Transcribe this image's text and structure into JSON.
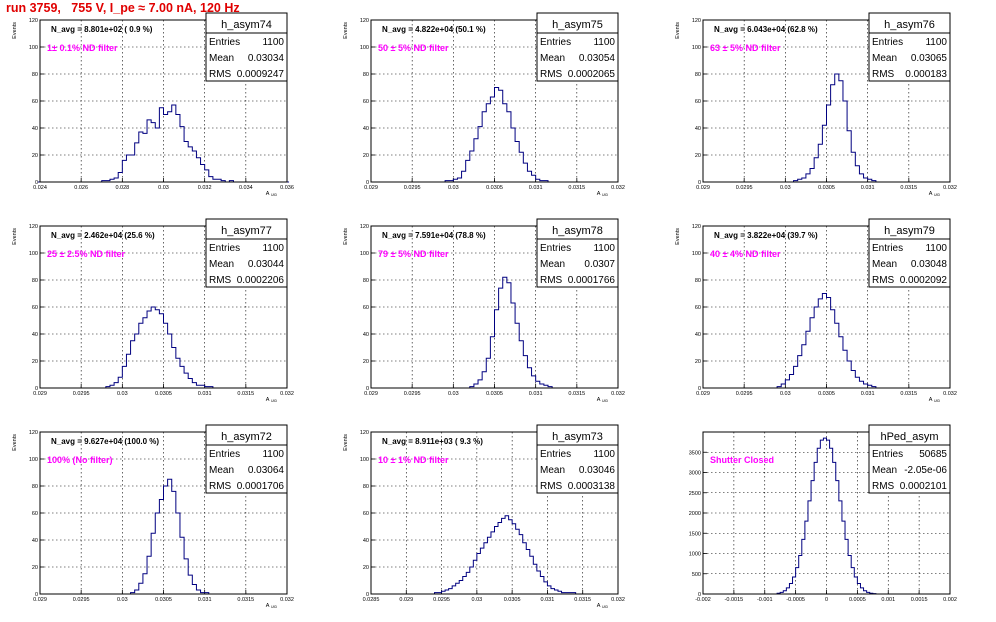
{
  "page_title": "run 3759,   755 V, I_pe ≈ 7.00 nA, 120 Hz",
  "colors": {
    "title": "#e00000",
    "filter_note": "#ff00ff",
    "histogram": "#000080",
    "grid": "#000000"
  },
  "chart_data": [
    {
      "type": "histogram",
      "name": "h_asym74",
      "stats": {
        "entries_label": "Entries",
        "entries": "1100",
        "mean_label": "Mean",
        "mean": "0.03034",
        "rms_label": "RMS",
        "rms": "0.0009247"
      },
      "note": "N_avg = 8.801e+02 ( 0.9 %)",
      "filter": "1± 0.1% ND filter",
      "xlabel": "A_UID",
      "ylabel": "Events",
      "xlim": [
        0.024,
        0.036
      ],
      "ylim": [
        0,
        120
      ],
      "xticks": [
        "0.024",
        "0.026",
        "0.028",
        "0.03",
        "0.032",
        "0.034",
        "0.036"
      ],
      "yticks": [
        "0",
        "20",
        "40",
        "60",
        "80",
        "100",
        "120"
      ],
      "bins": [
        0.0239,
        0.024,
        0.0245,
        0.025,
        0.0255,
        0.026,
        0.0265,
        0.027,
        0.0274,
        0.0276,
        0.0278,
        0.028,
        0.0282,
        0.0284,
        0.0286,
        0.0288,
        0.029,
        0.0292,
        0.0294,
        0.0296,
        0.0298,
        0.03,
        0.0302,
        0.0304,
        0.0306,
        0.0308,
        0.031,
        0.0312,
        0.0314,
        0.0316,
        0.0318,
        0.032,
        0.0322,
        0.0324,
        0.0326,
        0.0328,
        0.033,
        0.0332,
        0.0334,
        0.034,
        0.035,
        0.0361
      ],
      "counts": [
        0,
        0,
        0,
        0,
        0,
        0,
        0,
        1,
        2,
        3,
        7,
        16,
        20,
        20,
        29,
        37,
        36,
        46,
        44,
        40,
        55,
        50,
        52,
        57,
        50,
        41,
        30,
        26,
        23,
        18,
        13,
        9,
        4,
        2,
        2,
        1,
        0,
        1,
        0,
        0,
        0
      ]
    },
    {
      "type": "histogram",
      "name": "h_asym75",
      "stats": {
        "entries_label": "Entries",
        "entries": "1100",
        "mean_label": "Mean",
        "mean": "0.03054",
        "rms_label": "RMS",
        "rms": "0.0002065"
      },
      "note": "N_avg = 4.822e+04 (50.1 %)",
      "filter": "50 ± 5% ND filter",
      "xlabel": "A_UID",
      "ylabel": "Events",
      "xlim": [
        0.029,
        0.032
      ],
      "ylim": [
        0,
        120
      ],
      "xticks": [
        "0.029",
        "0.0295",
        "0.03",
        "0.0305",
        "0.031",
        "0.0315",
        "0.032"
      ],
      "yticks": [
        "0",
        "20",
        "40",
        "60",
        "80",
        "100",
        "120"
      ],
      "bins": [
        0.029,
        0.0299,
        0.03,
        0.03005,
        0.0301,
        0.03015,
        0.0302,
        0.03025,
        0.0303,
        0.03035,
        0.0304,
        0.03045,
        0.0305,
        0.03055,
        0.0306,
        0.03065,
        0.0307,
        0.03075,
        0.0308,
        0.03085,
        0.0309,
        0.03095,
        0.031,
        0.03105,
        0.0311,
        0.03115,
        0.0312,
        0.032
      ],
      "counts": [
        0,
        1,
        2,
        3,
        8,
        16,
        23,
        32,
        41,
        52,
        58,
        63,
        70,
        68,
        58,
        52,
        40,
        30,
        22,
        14,
        8,
        5,
        2,
        1,
        1,
        0,
        0
      ]
    },
    {
      "type": "histogram",
      "name": "h_asym76",
      "stats": {
        "entries_label": "Entries",
        "entries": "1100",
        "mean_label": "Mean",
        "mean": "0.03065",
        "rms_label": "RMS",
        "rms": "0.000183"
      },
      "note": "N_avg = 6.043e+04 (62.8 %)",
      "filter": "63 ± 5% ND filter",
      "xlabel": "A_UID",
      "ylabel": "Events",
      "xlim": [
        0.029,
        0.032
      ],
      "ylim": [
        0,
        120
      ],
      "xticks": [
        "0.029",
        "0.0295",
        "0.03",
        "0.0305",
        "0.031",
        "0.0315",
        "0.032"
      ],
      "yticks": [
        "0",
        "20",
        "40",
        "60",
        "80",
        "100",
        "120"
      ],
      "bins": [
        0.029,
        0.0301,
        0.03015,
        0.0302,
        0.03025,
        0.0303,
        0.03035,
        0.0304,
        0.03045,
        0.0305,
        0.03055,
        0.0306,
        0.03065,
        0.0307,
        0.03075,
        0.0308,
        0.03085,
        0.0309,
        0.03095,
        0.031,
        0.03105,
        0.0311,
        0.032
      ],
      "counts": [
        0,
        1,
        2,
        3,
        6,
        10,
        18,
        28,
        42,
        57,
        72,
        80,
        75,
        60,
        38,
        22,
        12,
        6,
        3,
        2,
        1,
        0
      ]
    },
    {
      "type": "histogram",
      "name": "h_asym77",
      "stats": {
        "entries_label": "Entries",
        "entries": "1100",
        "mean_label": "Mean",
        "mean": "0.03044",
        "rms_label": "RMS",
        "rms": "0.0002206"
      },
      "note": "N_avg = 2.462e+04 (25.6 %)",
      "filter": "25 ± 2.5% ND filter",
      "xlabel": "A_UID",
      "ylabel": "Events",
      "xlim": [
        0.029,
        0.032
      ],
      "ylim": [
        0,
        120
      ],
      "xticks": [
        "0.029",
        "0.0295",
        "0.03",
        "0.0305",
        "0.031",
        "0.0315",
        "0.032"
      ],
      "yticks": [
        "0",
        "20",
        "40",
        "60",
        "80",
        "100",
        "120"
      ],
      "bins": [
        0.029,
        0.0298,
        0.02985,
        0.0299,
        0.02995,
        0.03,
        0.03005,
        0.0301,
        0.03015,
        0.0302,
        0.03025,
        0.0303,
        0.03035,
        0.0304,
        0.03045,
        0.0305,
        0.03055,
        0.0306,
        0.03065,
        0.0307,
        0.03075,
        0.0308,
        0.03085,
        0.0309,
        0.03095,
        0.031,
        0.03105,
        0.0311,
        0.032
      ],
      "counts": [
        0,
        1,
        2,
        4,
        8,
        16,
        25,
        35,
        40,
        48,
        52,
        57,
        60,
        58,
        55,
        48,
        40,
        30,
        22,
        16,
        11,
        7,
        4,
        2,
        2,
        1,
        1,
        0
      ]
    },
    {
      "type": "histogram",
      "name": "h_asym78",
      "stats": {
        "entries_label": "Entries",
        "entries": "1100",
        "mean_label": "Mean",
        "mean": "0.0307",
        "rms_label": "RMS",
        "rms": "0.0001766"
      },
      "note": "N_avg = 7.591e+04 (78.8 %)",
      "filter": "79 ± 5% ND filter",
      "xlabel": "A_UID",
      "ylabel": "Events",
      "xlim": [
        0.029,
        0.032
      ],
      "ylim": [
        0,
        120
      ],
      "xticks": [
        "0.029",
        "0.0295",
        "0.03",
        "0.0305",
        "0.031",
        "0.0315",
        "0.032"
      ],
      "yticks": [
        "0",
        "20",
        "40",
        "60",
        "80",
        "100",
        "120"
      ],
      "bins": [
        0.029,
        0.0302,
        0.03025,
        0.0303,
        0.03035,
        0.0304,
        0.03045,
        0.0305,
        0.03055,
        0.0306,
        0.03065,
        0.0307,
        0.03075,
        0.0308,
        0.03085,
        0.0309,
        0.03095,
        0.031,
        0.03105,
        0.0311,
        0.03115,
        0.0312,
        0.032
      ],
      "counts": [
        0,
        1,
        3,
        6,
        12,
        22,
        38,
        58,
        74,
        82,
        78,
        63,
        48,
        35,
        24,
        15,
        9,
        5,
        3,
        2,
        1,
        0
      ]
    },
    {
      "type": "histogram",
      "name": "h_asym79",
      "stats": {
        "entries_label": "Entries",
        "entries": "1100",
        "mean_label": "Mean",
        "mean": "0.03048",
        "rms_label": "RMS",
        "rms": "0.0002092"
      },
      "note": "N_avg = 3.822e+04 (39.7 %)",
      "filter": "40 ± 4% ND filter",
      "xlabel": "A_UID",
      "ylabel": "Events",
      "xlim": [
        0.029,
        0.032
      ],
      "ylim": [
        0,
        120
      ],
      "xticks": [
        "0.029",
        "0.0295",
        "0.03",
        "0.0305",
        "0.031",
        "0.0315",
        "0.032"
      ],
      "yticks": [
        "0",
        "20",
        "40",
        "60",
        "80",
        "100",
        "120"
      ],
      "bins": [
        0.029,
        0.0299,
        0.02995,
        0.03,
        0.03005,
        0.0301,
        0.03015,
        0.0302,
        0.03025,
        0.0303,
        0.03035,
        0.0304,
        0.03045,
        0.0305,
        0.03055,
        0.0306,
        0.03065,
        0.0307,
        0.03075,
        0.0308,
        0.03085,
        0.0309,
        0.03095,
        0.031,
        0.03105,
        0.0311,
        0.032
      ],
      "counts": [
        0,
        1,
        3,
        6,
        10,
        16,
        24,
        32,
        42,
        52,
        60,
        66,
        70,
        67,
        58,
        48,
        38,
        28,
        20,
        13,
        8,
        5,
        3,
        2,
        1,
        0
      ]
    },
    {
      "type": "histogram",
      "name": "h_asym72",
      "stats": {
        "entries_label": "Entries",
        "entries": "1100",
        "mean_label": "Mean",
        "mean": "0.03064",
        "rms_label": "RMS",
        "rms": "0.0001706"
      },
      "note": "N_avg = 9.627e+04 (100.0 %)",
      "filter": "100% (No filter)",
      "xlabel": "A_UID",
      "ylabel": "Events",
      "xlim": [
        0.029,
        0.032
      ],
      "ylim": [
        0,
        120
      ],
      "xticks": [
        "0.029",
        "0.0295",
        "0.03",
        "0.0305",
        "0.031",
        "0.0315",
        "0.032"
      ],
      "yticks": [
        "0",
        "20",
        "40",
        "60",
        "80",
        "100",
        "120"
      ],
      "bins": [
        0.029,
        0.0301,
        0.03015,
        0.0302,
        0.03025,
        0.0303,
        0.03035,
        0.0304,
        0.03045,
        0.0305,
        0.03055,
        0.0306,
        0.03065,
        0.0307,
        0.03075,
        0.0308,
        0.03085,
        0.0309,
        0.03095,
        0.031,
        0.03105,
        0.032
      ],
      "counts": [
        0,
        1,
        3,
        8,
        15,
        28,
        45,
        60,
        70,
        80,
        85,
        76,
        60,
        42,
        26,
        14,
        7,
        3,
        1,
        1,
        0
      ]
    },
    {
      "type": "histogram",
      "name": "h_asym73",
      "stats": {
        "entries_label": "Entries",
        "entries": "1100",
        "mean_label": "Mean",
        "mean": "0.03046",
        "rms_label": "RMS",
        "rms": "0.0003138"
      },
      "note": "N_avg = 8.911e+03 ( 9.3 %)",
      "filter": "10 ± 1% ND filter",
      "xlabel": "A_UID",
      "ylabel": "Events",
      "xlim": [
        0.0285,
        0.032
      ],
      "ylim": [
        0,
        120
      ],
      "xticks": [
        "0.0285",
        "0.029",
        "0.0295",
        "0.03",
        "0.0305",
        "0.031",
        "0.0315",
        "0.032"
      ],
      "yticks": [
        "0",
        "20",
        "40",
        "60",
        "80",
        "100",
        "120"
      ],
      "bins": [
        0.0285,
        0.0294,
        0.02945,
        0.0295,
        0.02955,
        0.0296,
        0.02965,
        0.0297,
        0.02975,
        0.0298,
        0.02985,
        0.0299,
        0.02995,
        0.03,
        0.03005,
        0.0301,
        0.03015,
        0.0302,
        0.03025,
        0.0303,
        0.03035,
        0.0304,
        0.03045,
        0.0305,
        0.03055,
        0.0306,
        0.03065,
        0.0307,
        0.03075,
        0.0308,
        0.03085,
        0.0309,
        0.03095,
        0.031,
        0.03105,
        0.0311,
        0.03115,
        0.0312,
        0.03125,
        0.0313,
        0.0314,
        0.032
      ],
      "counts": [
        0,
        1,
        1,
        2,
        3,
        4,
        6,
        8,
        10,
        13,
        16,
        20,
        25,
        30,
        34,
        38,
        42,
        46,
        50,
        53,
        56,
        58,
        55,
        52,
        48,
        44,
        38,
        33,
        28,
        22,
        17,
        13,
        9,
        6,
        4,
        3,
        2,
        1,
        1,
        1,
        0
      ]
    },
    {
      "type": "histogram",
      "name": "hPed_asym",
      "stats": {
        "entries_label": "Entries",
        "entries": "50685",
        "mean_label": "Mean",
        "mean": "-2.05e-06",
        "rms_label": "RMS",
        "rms": "0.0002101"
      },
      "note": "",
      "filter": "Shutter Closed",
      "xlabel": "",
      "ylabel": "",
      "xlim": [
        -0.002,
        0.002
      ],
      "ylim": [
        0,
        4000
      ],
      "xticks": [
        "-0.002",
        "-0.0015",
        "-0.001",
        "-0.0005",
        "0",
        "0.0005",
        "0.001",
        "0.0015",
        "0.002"
      ],
      "yticks": [
        "0",
        "500",
        "1000",
        "1500",
        "2000",
        "2500",
        "3000",
        "3500"
      ],
      "bins": [
        -0.002,
        -0.0008,
        -0.00075,
        -0.0007,
        -0.00065,
        -0.0006,
        -0.00055,
        -0.0005,
        -0.00045,
        -0.0004,
        -0.00035,
        -0.0003,
        -0.00025,
        -0.0002,
        -0.00015,
        -0.0001,
        -5e-05,
        0,
        5e-05,
        0.0001,
        0.00015,
        0.0002,
        0.00025,
        0.0003,
        0.00035,
        0.0004,
        0.00045,
        0.0005,
        0.00055,
        0.0006,
        0.00065,
        0.0007,
        0.00075,
        0.0008,
        0.002
      ],
      "counts": [
        0,
        20,
        40,
        80,
        150,
        260,
        420,
        650,
        950,
        1350,
        1800,
        2300,
        2800,
        3250,
        3600,
        3800,
        3850,
        3800,
        3600,
        3250,
        2800,
        2300,
        1800,
        1350,
        950,
        650,
        420,
        260,
        150,
        80,
        40,
        20,
        10,
        0
      ]
    }
  ]
}
